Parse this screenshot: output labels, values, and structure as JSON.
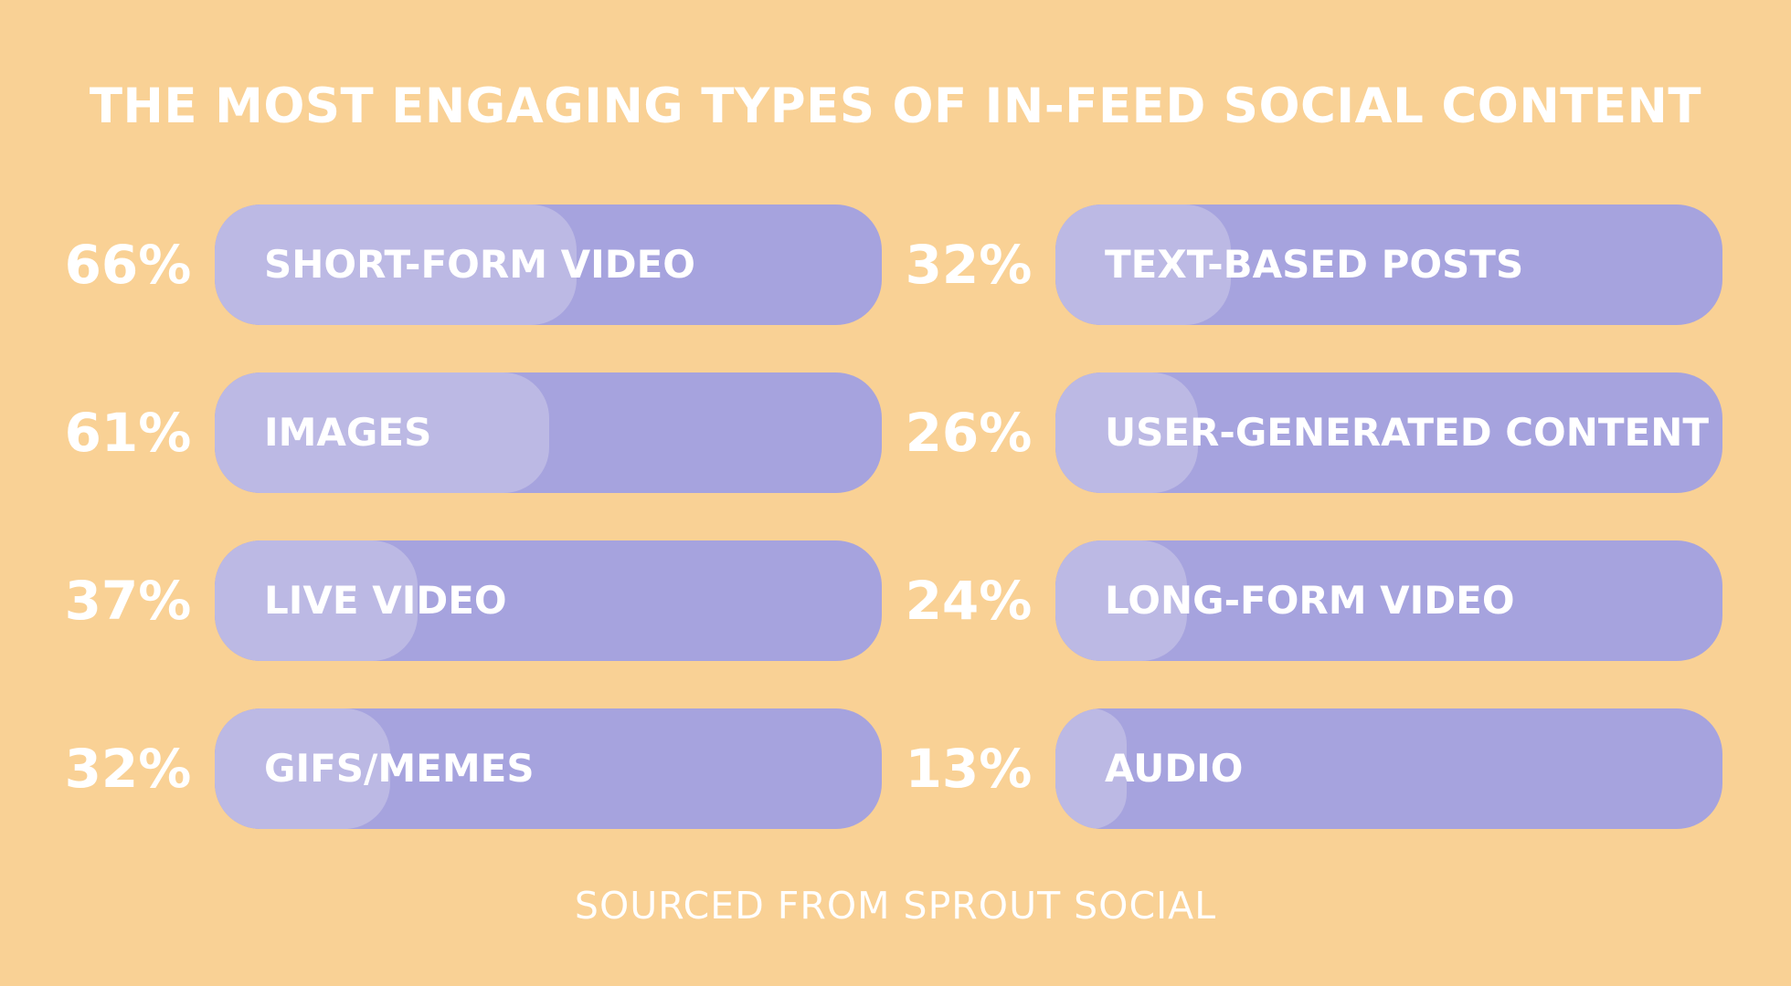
{
  "title": "THE MOST ENGAGING TYPES OF IN-FEED SOCIAL CONTENT",
  "source": "SOURCED FROM SPROUT SOCIAL",
  "colors": {
    "background": "#f9d195",
    "track": "#a6a3de",
    "fill": "#bcb9e4",
    "text": "#ffffff"
  },
  "chart_data": {
    "type": "bar",
    "orientation": "horizontal",
    "title": "THE MOST ENGAGING TYPES OF IN-FEED SOCIAL CONTENT",
    "unit": "%",
    "xlim": [
      0,
      100
    ],
    "categories": [
      "SHORT-FORM VIDEO",
      "IMAGES",
      "LIVE VIDEO",
      "GIFS/MEMES",
      "TEXT-BASED POSTS",
      "USER-GENERATED CONTENT",
      "LONG-FORM VIDEO",
      "AUDIO"
    ],
    "values": [
      66,
      61,
      37,
      32,
      32,
      26,
      24,
      13
    ],
    "value_labels": [
      "66%",
      "61%",
      "37%",
      "32%",
      "32%",
      "26%",
      "24%",
      "13%"
    ]
  }
}
